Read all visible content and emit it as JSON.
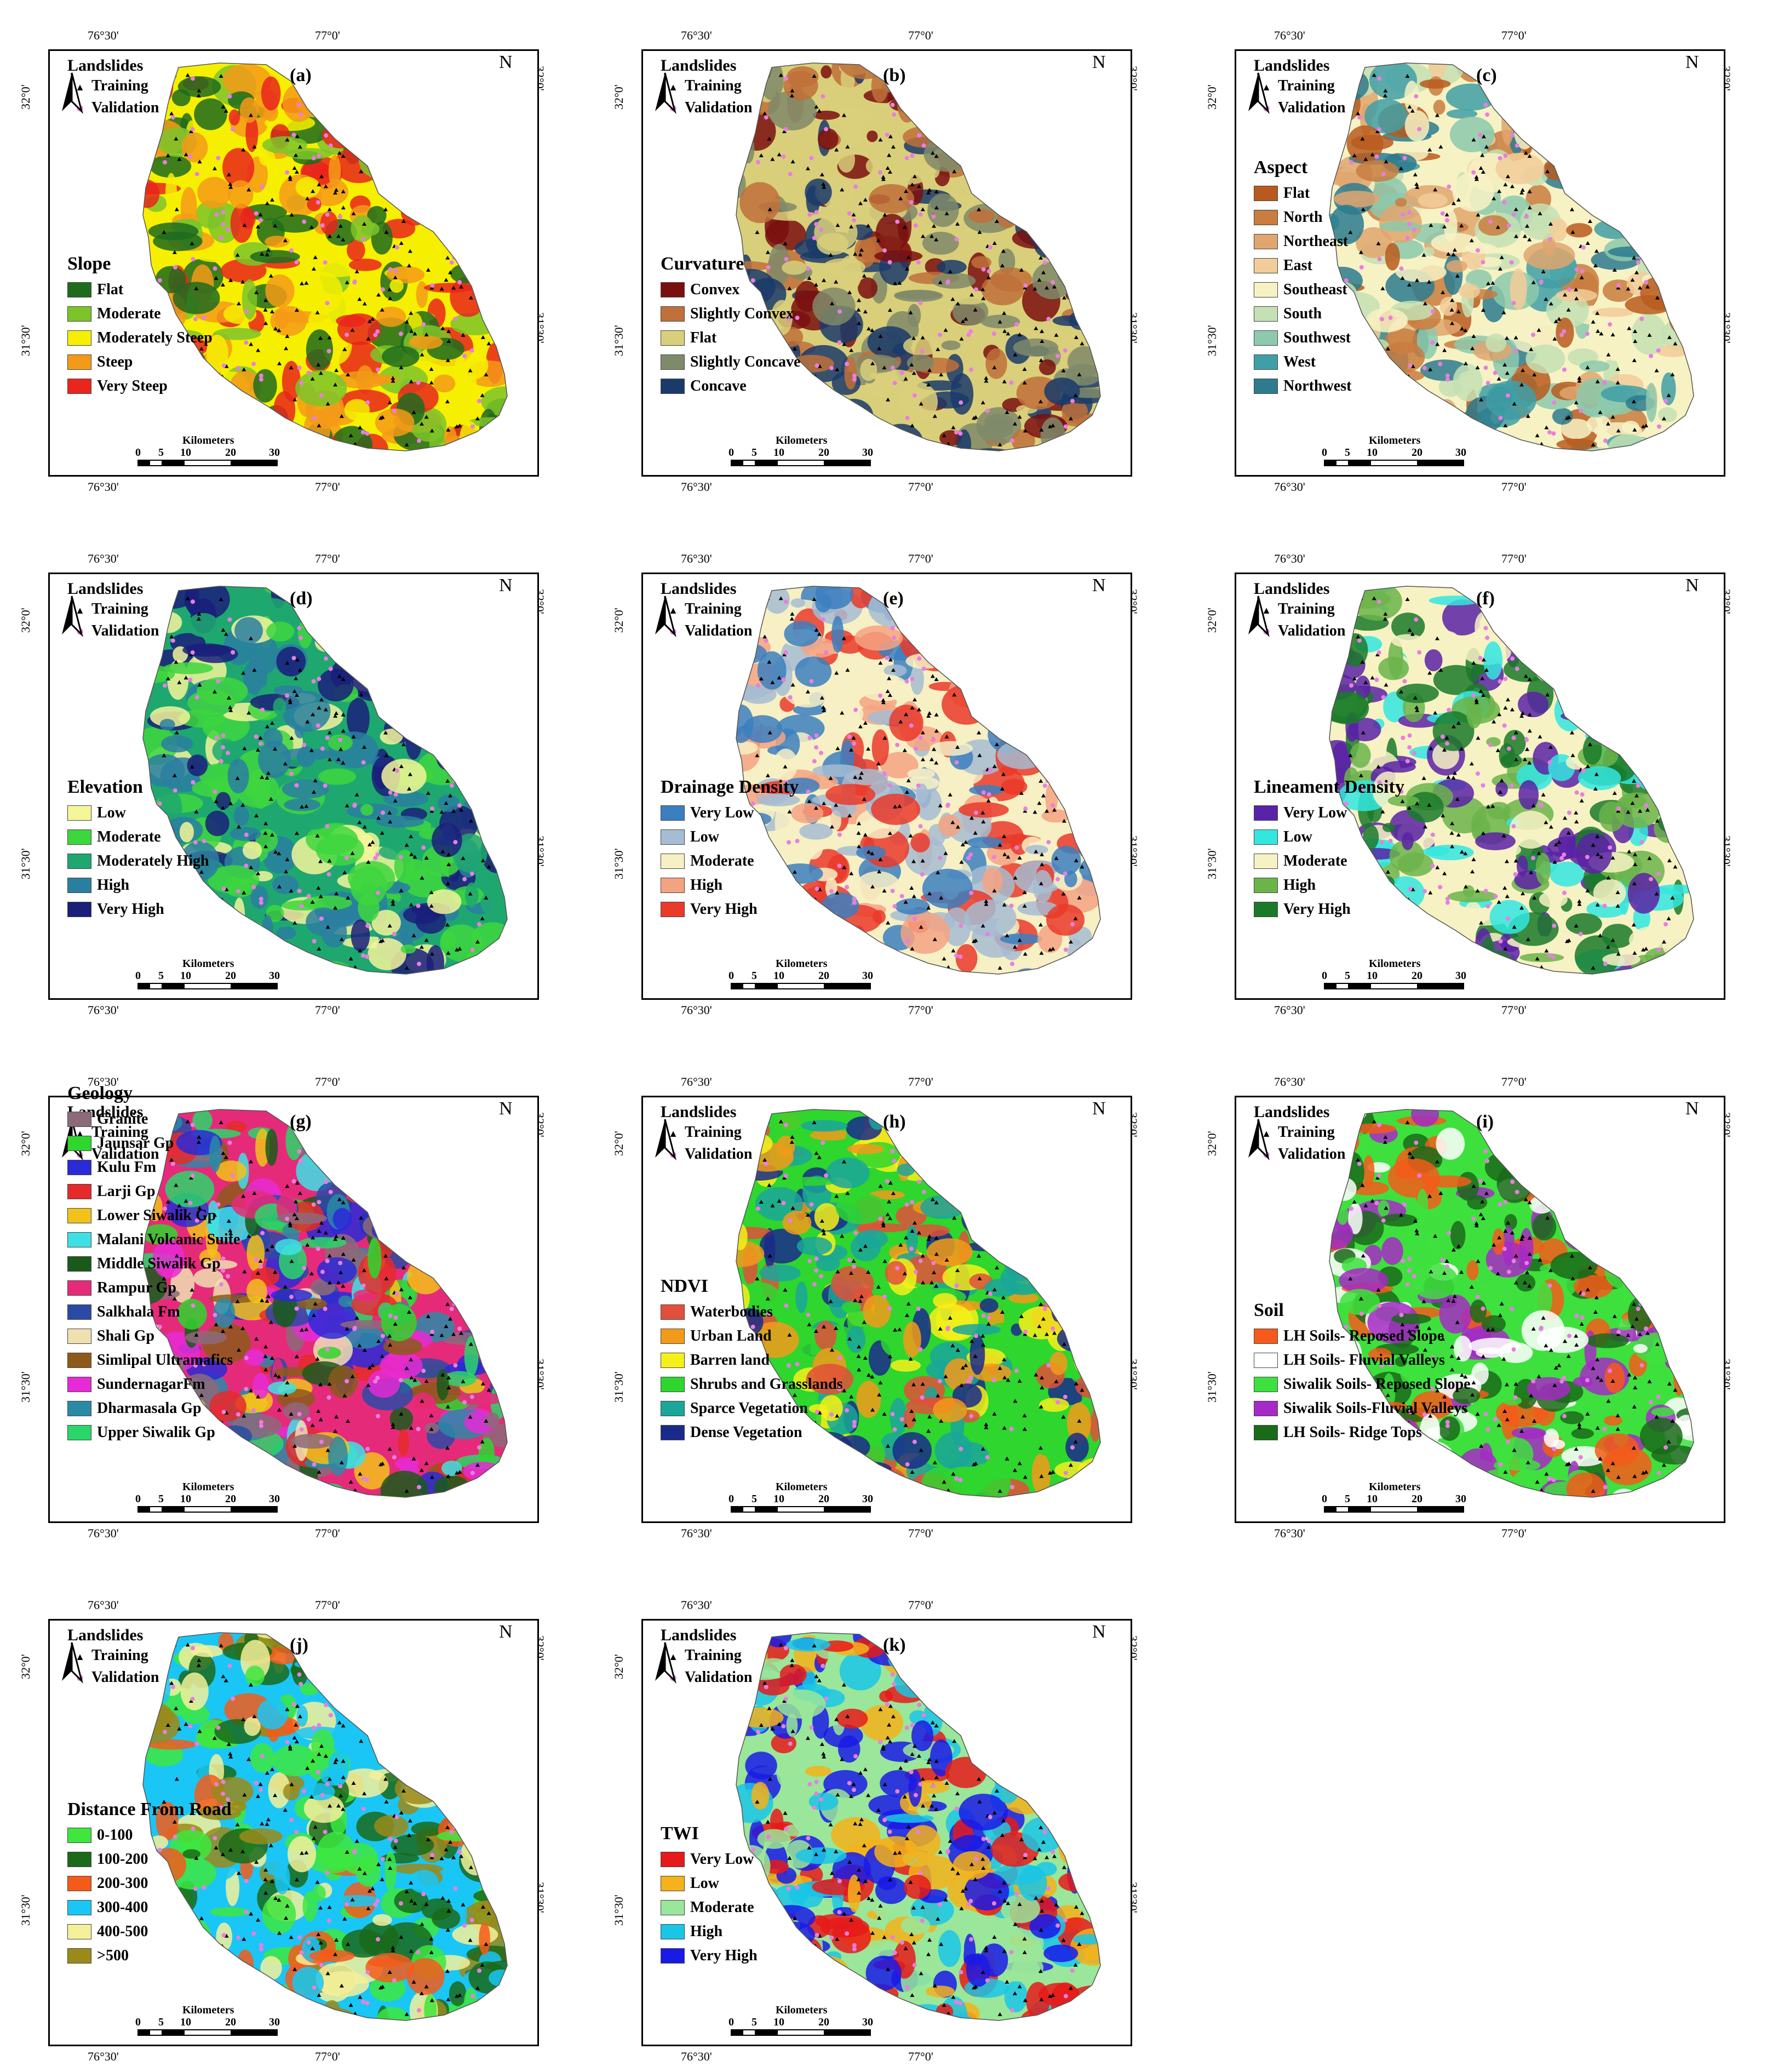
{
  "ticks": {
    "lon_left": "76°30'",
    "lon_right": "77°0'",
    "lat_top": "32°0'",
    "lat_bottom": "31°30'"
  },
  "landslides": {
    "title": "Landslides",
    "training": "Training",
    "validation": "Validation"
  },
  "scale": {
    "title": "Kilometers",
    "labels": [
      "0",
      "5",
      "10",
      "20",
      "30"
    ]
  },
  "north_label": "N",
  "colors": {
    "validation_point": "#e87fe0",
    "training_point": "#000000",
    "frame": "#000000"
  },
  "panels": [
    {
      "letter": "(a)",
      "legend_title": "Slope",
      "classes": [
        {
          "label": "Flat",
          "color": "#1e6b1e"
        },
        {
          "label": "Moderate",
          "color": "#7cc42a"
        },
        {
          "label": "Moderately Steep",
          "color": "#f6f000"
        },
        {
          "label": "Steep",
          "color": "#f59a18"
        },
        {
          "label": "Very Steep",
          "color": "#e9251c"
        }
      ]
    },
    {
      "letter": "(b)",
      "legend_title": "Curvature",
      "classes": [
        {
          "label": "Convex",
          "color": "#7a0f0f"
        },
        {
          "label": "Slightly Convex",
          "color": "#c0703a"
        },
        {
          "label": "Flat",
          "color": "#d9cf7a"
        },
        {
          "label": "Slightly Concave",
          "color": "#7f8a6a"
        },
        {
          "label": "Concave",
          "color": "#1a3a6a"
        }
      ]
    },
    {
      "letter": "(c)",
      "legend_title": "Aspect",
      "classes": [
        {
          "label": "Flat",
          "color": "#b85a1e"
        },
        {
          "label": "North",
          "color": "#c97d3f"
        },
        {
          "label": "Northeast",
          "color": "#e0a66f"
        },
        {
          "label": "East",
          "color": "#f2cc99"
        },
        {
          "label": "Southeast",
          "color": "#f7f2c4"
        },
        {
          "label": "South",
          "color": "#c4e0b4"
        },
        {
          "label": "Southwest",
          "color": "#8cc9ad"
        },
        {
          "label": "West",
          "color": "#3f9fa6"
        },
        {
          "label": "Northwest",
          "color": "#2c7b8f"
        }
      ]
    },
    {
      "letter": "(d)",
      "legend_title": "Elevation",
      "classes": [
        {
          "label": "Low",
          "color": "#f5f59a"
        },
        {
          "label": "Moderate",
          "color": "#3ed63e"
        },
        {
          "label": "Moderately High",
          "color": "#1ea870"
        },
        {
          "label": "High",
          "color": "#2a7fa0"
        },
        {
          "label": "Very High",
          "color": "#1a1f7a"
        }
      ]
    },
    {
      "letter": "(e)",
      "legend_title": "Drainage Density",
      "classes": [
        {
          "label": "Very Low",
          "color": "#3c7fbf"
        },
        {
          "label": "Low",
          "color": "#a6bcd2"
        },
        {
          "label": "Moderate",
          "color": "#f7f0c4"
        },
        {
          "label": "High",
          "color": "#f4a382"
        },
        {
          "label": "Very High",
          "color": "#ea3a2a"
        }
      ]
    },
    {
      "letter": "(f)",
      "legend_title": "Lineament Density",
      "classes": [
        {
          "label": "Very Low",
          "color": "#5a22a6"
        },
        {
          "label": "Low",
          "color": "#33e6e0"
        },
        {
          "label": "Moderate",
          "color": "#f7f2c4"
        },
        {
          "label": "High",
          "color": "#6bb44a"
        },
        {
          "label": "Very High",
          "color": "#1a7a2a"
        }
      ]
    },
    {
      "letter": "(g)",
      "legend_title": "Geology",
      "classes": [
        {
          "label": "Granite",
          "color": "#8c6a7a"
        },
        {
          "label": "Jaunsar Gp",
          "color": "#2ed62e"
        },
        {
          "label": "Kulu Fm",
          "color": "#2a2ad6"
        },
        {
          "label": "Larji Gp",
          "color": "#e52a2a"
        },
        {
          "label": "Lower Siwalik Gp",
          "color": "#f2c21a"
        },
        {
          "label": "Malani Volcanic Suite",
          "color": "#3ee0e6"
        },
        {
          "label": "Middle Siwalik Gp",
          "color": "#1a5a1a"
        },
        {
          "label": "Rampur Gp",
          "color": "#e62a7a"
        },
        {
          "label": "Salkhala Fm",
          "color": "#2a4aa6"
        },
        {
          "label": "Shali Gp",
          "color": "#efe0b0"
        },
        {
          "label": "Simlipal Ultramafics",
          "color": "#8c5a1a"
        },
        {
          "label": "SundernagarFm",
          "color": "#e62ad6"
        },
        {
          "label": "Dharmasala Gp",
          "color": "#2a8aa6"
        },
        {
          "label": "Upper Siwalik Gp",
          "color": "#2ad66a"
        }
      ]
    },
    {
      "letter": "(h)",
      "legend_title": "NDVI",
      "classes": [
        {
          "label": "Waterbodies",
          "color": "#e0503a"
        },
        {
          "label": "Urban Land",
          "color": "#f29a1a"
        },
        {
          "label": "Barren land",
          "color": "#f6f01a"
        },
        {
          "label": "Shrubs and Grasslands",
          "color": "#2ed62e"
        },
        {
          "label": "Sparce Vegetation",
          "color": "#1aa69a"
        },
        {
          "label": "Dense Vegetation",
          "color": "#1a2a8a"
        }
      ]
    },
    {
      "letter": "(i)",
      "legend_title": "Soil",
      "classes": [
        {
          "label": "LH Soils- Reposed Slope",
          "color": "#f55a1a"
        },
        {
          "label": "LH Soils- Fluvial Valleys",
          "color": "#ffffff"
        },
        {
          "label": "Siwalik Soils- Reposed Slope",
          "color": "#3ee03e"
        },
        {
          "label": "Siwalik Soils-Fluvial Valleys",
          "color": "#a62ac6"
        },
        {
          "label": "LH Soils- Ridge Tops",
          "color": "#1a6a1a"
        }
      ]
    },
    {
      "letter": "(j)",
      "legend_title": "Distance From Road",
      "classes": [
        {
          "label": "0-100",
          "color": "#3ee63e"
        },
        {
          "label": "100-200",
          "color": "#1a6a1a"
        },
        {
          "label": "200-300",
          "color": "#f55a1a"
        },
        {
          "label": "300-400",
          "color": "#1ac6f5"
        },
        {
          "label": "400-500",
          "color": "#f5f09a"
        },
        {
          "label": ">500",
          "color": "#9a8a1a"
        }
      ]
    },
    {
      "letter": "(k)",
      "legend_title": "TWI",
      "classes": [
        {
          "label": "Very Low",
          "color": "#e61a1a"
        },
        {
          "label": "Low",
          "color": "#f5b21a"
        },
        {
          "label": "Moderate",
          "color": "#9ae69a"
        },
        {
          "label": "High",
          "color": "#1ac6e6"
        },
        {
          "label": "Very High",
          "color": "#1a1ae6"
        }
      ]
    }
  ]
}
